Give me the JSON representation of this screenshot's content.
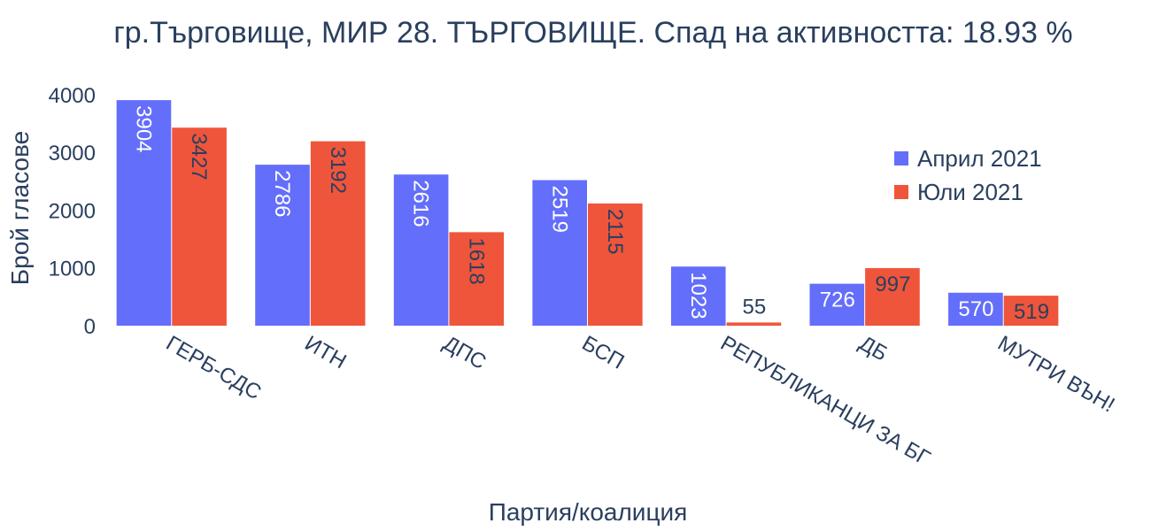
{
  "chart_data": {
    "type": "bar",
    "title": "гр.Търговище, МИР 28. ТЪРГОВИЩЕ. Спад на активността: 18.93 %",
    "xlabel": "Партия/коалиция",
    "ylabel": "Брой гласове",
    "categories": [
      "ГЕРБ-СДС",
      "ИТН",
      "ДПС",
      "БСП",
      "РЕПУБЛИКАНЦИ ЗА БГ",
      "ДБ",
      "МУТРИ ВЪН!"
    ],
    "series": [
      {
        "name": "Април 2021",
        "color": "#636efa",
        "values": [
          3904,
          2786,
          2616,
          2519,
          1023,
          726,
          570
        ]
      },
      {
        "name": "Юли 2021",
        "color": "#ef553b",
        "values": [
          3427,
          3192,
          1618,
          2115,
          55,
          997,
          519
        ]
      }
    ],
    "y_ticks": [
      0,
      1000,
      2000,
      3000,
      4000
    ],
    "ylim": [
      0,
      4105
    ],
    "grid": false,
    "legend_position": "top-right"
  }
}
